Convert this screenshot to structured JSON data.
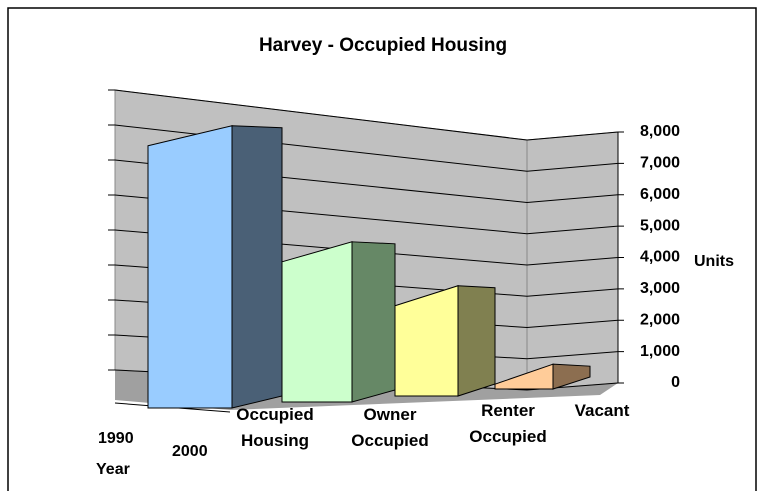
{
  "chart_data": {
    "type": "bar3d",
    "title": "Harvey - Occupied Housing",
    "categories": [
      "Occupied Housing",
      "Owner Occupied",
      "Renter Occupied",
      "Vacant"
    ],
    "values": [
      8200,
      4500,
      3100,
      600
    ],
    "colors": [
      "#99ccff",
      "#ccffcc",
      "#ffff99",
      "#ffcc99"
    ],
    "side_colors": [
      "#4a6076",
      "#668866",
      "#808050",
      "#8c6e50"
    ],
    "depth_categories": [
      "1990",
      "2000"
    ],
    "depth_label": "Year",
    "y_label": "Units",
    "ylim": [
      0,
      8000
    ],
    "yticks": [
      0,
      {
        "value": 1000,
        "label": "1,000"
      },
      {
        "value": 2000,
        "label": "2,000"
      },
      {
        "value": 3000,
        "label": "3,000"
      },
      {
        "value": 4000,
        "label": "4,000"
      },
      {
        "value": 5000,
        "label": "5,000"
      },
      {
        "value": 6000,
        "label": "6,000"
      },
      {
        "value": 7000,
        "label": "7,000"
      },
      {
        "value": 8000,
        "label": "8,000"
      }
    ],
    "grid": true
  }
}
